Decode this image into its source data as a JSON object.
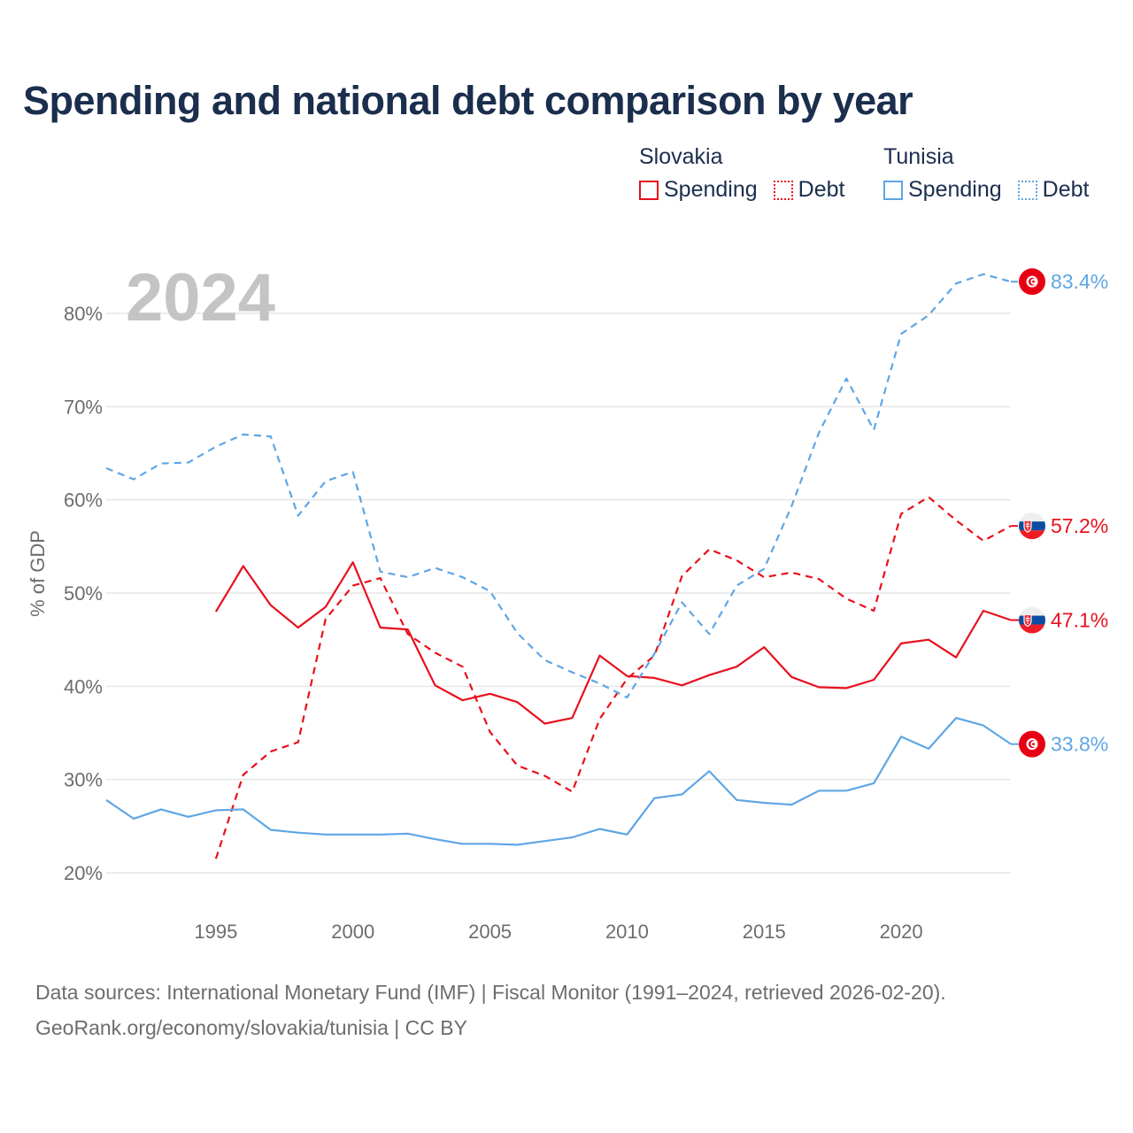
{
  "title": "Spending and national debt comparison by year",
  "legend": {
    "groups": [
      {
        "name": "Slovakia",
        "color": "#e8101d",
        "items": [
          {
            "label": "Spending",
            "style": "solid"
          },
          {
            "label": "Debt",
            "style": "dotted"
          }
        ]
      },
      {
        "name": "Tunisia",
        "color": "#5fa6e4",
        "items": [
          {
            "label": "Spending",
            "style": "solid"
          },
          {
            "label": "Debt",
            "style": "dotted"
          }
        ]
      }
    ]
  },
  "chart_data": {
    "type": "line",
    "year_label": "2024",
    "ylabel": "% of GDP",
    "xlim": [
      1991,
      2024
    ],
    "ylim": [
      15,
      84
    ],
    "x_ticks": [
      1995,
      2000,
      2005,
      2010,
      2015,
      2020
    ],
    "y_ticks": [
      20,
      30,
      40,
      50,
      60,
      70,
      80
    ],
    "grid": true,
    "series": [
      {
        "name": "Slovakia Spending",
        "country": "Slovakia",
        "metric": "Spending",
        "color": "#e8101d",
        "dash": "",
        "x": [
          1995,
          1996,
          1997,
          1998,
          1999,
          2000,
          2001,
          2002,
          2003,
          2004,
          2005,
          2006,
          2007,
          2008,
          2009,
          2010,
          2011,
          2012,
          2013,
          2014,
          2015,
          2016,
          2017,
          2018,
          2019,
          2020,
          2021,
          2022,
          2023,
          2024
        ],
        "values": [
          48.0,
          52.9,
          48.7,
          46.3,
          48.5,
          53.3,
          46.3,
          46.1,
          40.1,
          38.5,
          39.2,
          38.3,
          36.0,
          36.6,
          43.3,
          41.1,
          40.9,
          40.1,
          41.2,
          42.1,
          44.2,
          41.0,
          39.9,
          39.8,
          40.7,
          44.6,
          45.0,
          43.1,
          48.1,
          47.1
        ],
        "end_label": "47.1%"
      },
      {
        "name": "Slovakia Debt",
        "country": "Slovakia",
        "metric": "Debt",
        "color": "#e8101d",
        "dash": "8,6",
        "x": [
          1995,
          1996,
          1997,
          1998,
          1999,
          2000,
          2001,
          2002,
          2003,
          2004,
          2005,
          2006,
          2007,
          2008,
          2009,
          2010,
          2011,
          2012,
          2013,
          2014,
          2015,
          2016,
          2017,
          2018,
          2019,
          2020,
          2021,
          2022,
          2023,
          2024
        ],
        "values": [
          21.5,
          30.5,
          33.0,
          34.0,
          47.2,
          50.8,
          51.6,
          45.6,
          43.6,
          42.1,
          35.1,
          31.5,
          30.4,
          28.7,
          36.5,
          40.8,
          43.3,
          51.8,
          54.7,
          53.5,
          51.7,
          52.2,
          51.5,
          49.4,
          48.1,
          58.5,
          60.3,
          57.8,
          55.6,
          57.2
        ],
        "end_label": "57.2%"
      },
      {
        "name": "Tunisia Spending",
        "country": "Tunisia",
        "metric": "Spending",
        "color": "#5fa6e4",
        "dash": "",
        "x": [
          1991,
          1992,
          1993,
          1994,
          1995,
          1996,
          1997,
          1998,
          1999,
          2000,
          2001,
          2002,
          2003,
          2004,
          2005,
          2006,
          2007,
          2008,
          2009,
          2010,
          2011,
          2012,
          2013,
          2014,
          2015,
          2016,
          2017,
          2018,
          2019,
          2020,
          2021,
          2022,
          2023,
          2024
        ],
        "values": [
          27.8,
          25.8,
          26.8,
          26.0,
          26.7,
          26.8,
          24.6,
          24.3,
          24.1,
          24.1,
          24.1,
          24.2,
          23.6,
          23.1,
          23.1,
          23.0,
          23.4,
          23.8,
          24.7,
          24.1,
          28.0,
          28.4,
          30.9,
          27.8,
          27.5,
          27.3,
          28.8,
          28.8,
          29.6,
          34.6,
          33.3,
          36.6,
          35.8,
          33.8
        ],
        "end_label": "33.8%"
      },
      {
        "name": "Tunisia Debt",
        "country": "Tunisia",
        "metric": "Debt",
        "color": "#5fa6e4",
        "dash": "8,6",
        "x": [
          1991,
          1992,
          1993,
          1994,
          1995,
          1996,
          1997,
          1998,
          1999,
          2000,
          2001,
          2002,
          2003,
          2004,
          2005,
          2006,
          2007,
          2008,
          2009,
          2010,
          2011,
          2012,
          2013,
          2014,
          2015,
          2016,
          2017,
          2018,
          2019,
          2020,
          2021,
          2022,
          2023,
          2024
        ],
        "values": [
          63.4,
          62.2,
          63.9,
          64.0,
          65.7,
          67.0,
          66.8,
          58.3,
          62.0,
          63.0,
          52.3,
          51.7,
          52.7,
          51.7,
          50.2,
          45.7,
          42.8,
          41.5,
          40.3,
          38.8,
          43.5,
          49.0,
          45.6,
          50.8,
          52.6,
          59.3,
          67.2,
          73.0,
          67.5,
          77.8,
          79.8,
          83.2,
          84.2,
          83.4
        ],
        "end_label": "83.4%"
      }
    ]
  },
  "source": {
    "line1": "Data sources: International Monetary Fund (IMF) | Fiscal Monitor (1991–2024, retrieved 2026-02-20).",
    "line2": "GeoRank.org/economy/slovakia/tunisia | CC BY"
  }
}
